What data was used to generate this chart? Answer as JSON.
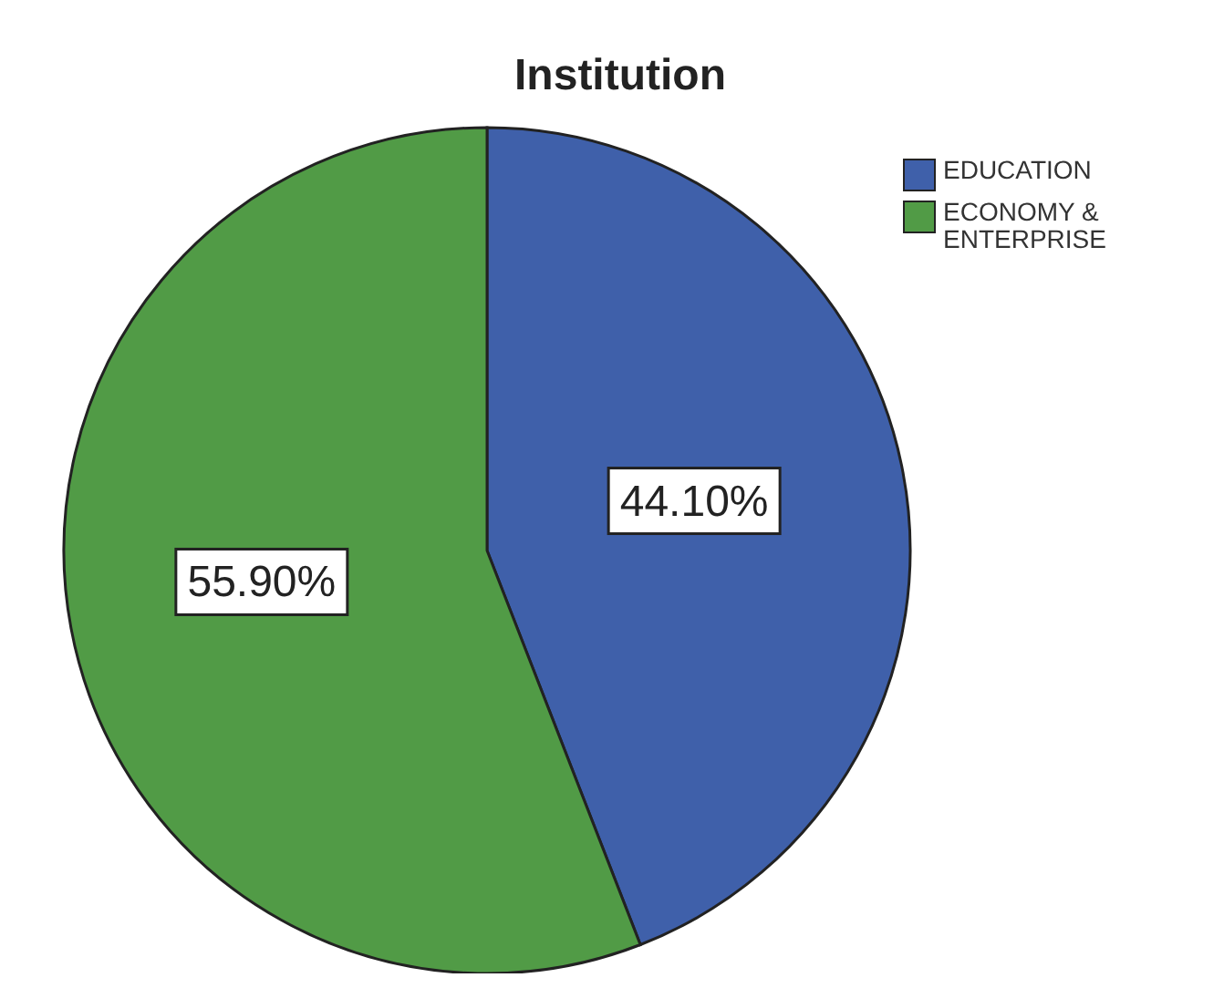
{
  "chart_data": {
    "type": "pie",
    "title": "Institution",
    "categories": [
      "EDUCATION",
      "ECONOMY & ENTERPRISE"
    ],
    "values": [
      44.1,
      55.9
    ],
    "value_labels": [
      "44.10%",
      "55.90%"
    ],
    "colors": [
      "#3f60aa",
      "#519b46"
    ],
    "legend": "top right"
  }
}
